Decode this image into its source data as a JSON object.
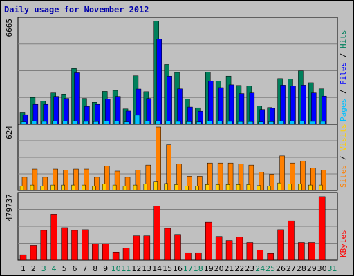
{
  "title": "Daily usage for November 2012",
  "colors": {
    "frame_bg": "#c0c0c0",
    "panel_bg": "#c0c0c0",
    "title": "#0000aa",
    "hits": "#00805c",
    "files": "#0000ff",
    "pages": "#00c0ff",
    "visits": "#ff8000",
    "sites": "#ffd000",
    "kbytes": "#ff0000",
    "weekday_label": "#000000",
    "weekend_label": "#00805c"
  },
  "chart_data": [
    {
      "type": "bar",
      "panel": "hits-files-pages",
      "ylabel_max": "6665",
      "ymax": 6665,
      "legend_text": [
        "Pages",
        " / ",
        "Files",
        " / ",
        "Hits"
      ],
      "categories": [
        "1",
        "2",
        "3",
        "4",
        "5",
        "6",
        "7",
        "8",
        "9",
        "10",
        "11",
        "12",
        "13",
        "14",
        "15",
        "16",
        "17",
        "18",
        "19",
        "20",
        "21",
        "22",
        "23",
        "24",
        "25",
        "26",
        "27",
        "28",
        "29",
        "30",
        "31"
      ],
      "series": [
        {
          "name": "Hits",
          "values": [
            730,
            1710,
            1480,
            2000,
            1930,
            3560,
            1650,
            1400,
            2100,
            2160,
            980,
            3100,
            2080,
            6590,
            3820,
            3310,
            1600,
            1050,
            3330,
            2770,
            3080,
            2480,
            2460,
            1160,
            1070,
            2920,
            2900,
            3410,
            2650,
            2260,
            0
          ]
        },
        {
          "name": "Files",
          "values": [
            610,
            1270,
            1270,
            1780,
            1650,
            3290,
            1140,
            1270,
            1620,
            1780,
            840,
            2250,
            1650,
            5450,
            3080,
            2260,
            1100,
            830,
            2770,
            2340,
            2520,
            1960,
            2000,
            940,
            1020,
            2500,
            2450,
            2500,
            2000,
            1800,
            0
          ]
        },
        {
          "name": "Pages",
          "values": [
            150,
            200,
            180,
            200,
            210,
            190,
            180,
            170,
            190,
            200,
            150,
            580,
            200,
            210,
            200,
            180,
            160,
            140,
            190,
            200,
            180,
            170,
            170,
            150,
            160,
            200,
            190,
            200,
            180,
            180,
            0
          ]
        }
      ]
    },
    {
      "type": "bar",
      "panel": "visits-sites",
      "ylabel_max": "624",
      "ymax": 624,
      "legend_text": [
        "Sites",
        " / ",
        "Visits"
      ],
      "categories": [
        "1",
        "2",
        "3",
        "4",
        "5",
        "6",
        "7",
        "8",
        "9",
        "10",
        "11",
        "12",
        "13",
        "14",
        "15",
        "16",
        "17",
        "18",
        "19",
        "20",
        "21",
        "22",
        "23",
        "24",
        "25",
        "26",
        "27",
        "28",
        "29",
        "30",
        "31"
      ],
      "series": [
        {
          "name": "Visits",
          "values": [
            130,
            210,
            130,
            210,
            200,
            210,
            210,
            130,
            240,
            190,
            130,
            200,
            250,
            624,
            450,
            260,
            140,
            140,
            270,
            270,
            270,
            260,
            250,
            180,
            160,
            340,
            270,
            290,
            220,
            200,
            0
          ]
        },
        {
          "name": "Sites",
          "values": [
            30,
            40,
            30,
            40,
            40,
            40,
            40,
            30,
            50,
            40,
            30,
            40,
            50,
            70,
            55,
            45,
            30,
            30,
            45,
            45,
            45,
            45,
            45,
            35,
            30,
            60,
            50,
            50,
            40,
            40,
            0
          ]
        }
      ]
    },
    {
      "type": "bar",
      "panel": "kbytes",
      "ylabel_max": "479737",
      "ymax": 479737,
      "legend_text": [
        "KBytes"
      ],
      "categories": [
        "1",
        "2",
        "3",
        "4",
        "5",
        "6",
        "7",
        "8",
        "9",
        "10",
        "11",
        "12",
        "13",
        "14",
        "15",
        "16",
        "17",
        "18",
        "19",
        "20",
        "21",
        "22",
        "23",
        "24",
        "25",
        "26",
        "27",
        "28",
        "29",
        "30",
        "31"
      ],
      "series": [
        {
          "name": "KBytes",
          "values": [
            40000,
            110000,
            220000,
            340000,
            240000,
            220000,
            225000,
            120000,
            120000,
            60000,
            90000,
            180000,
            180000,
            400000,
            235000,
            190000,
            55000,
            55000,
            280000,
            175000,
            145000,
            170000,
            130000,
            75000,
            50000,
            225000,
            290000,
            130000,
            130000,
            470000,
            0
          ]
        }
      ]
    }
  ],
  "weekend_days": [
    "3",
    "4",
    "10",
    "11",
    "17",
    "18",
    "24",
    "25",
    "31"
  ]
}
